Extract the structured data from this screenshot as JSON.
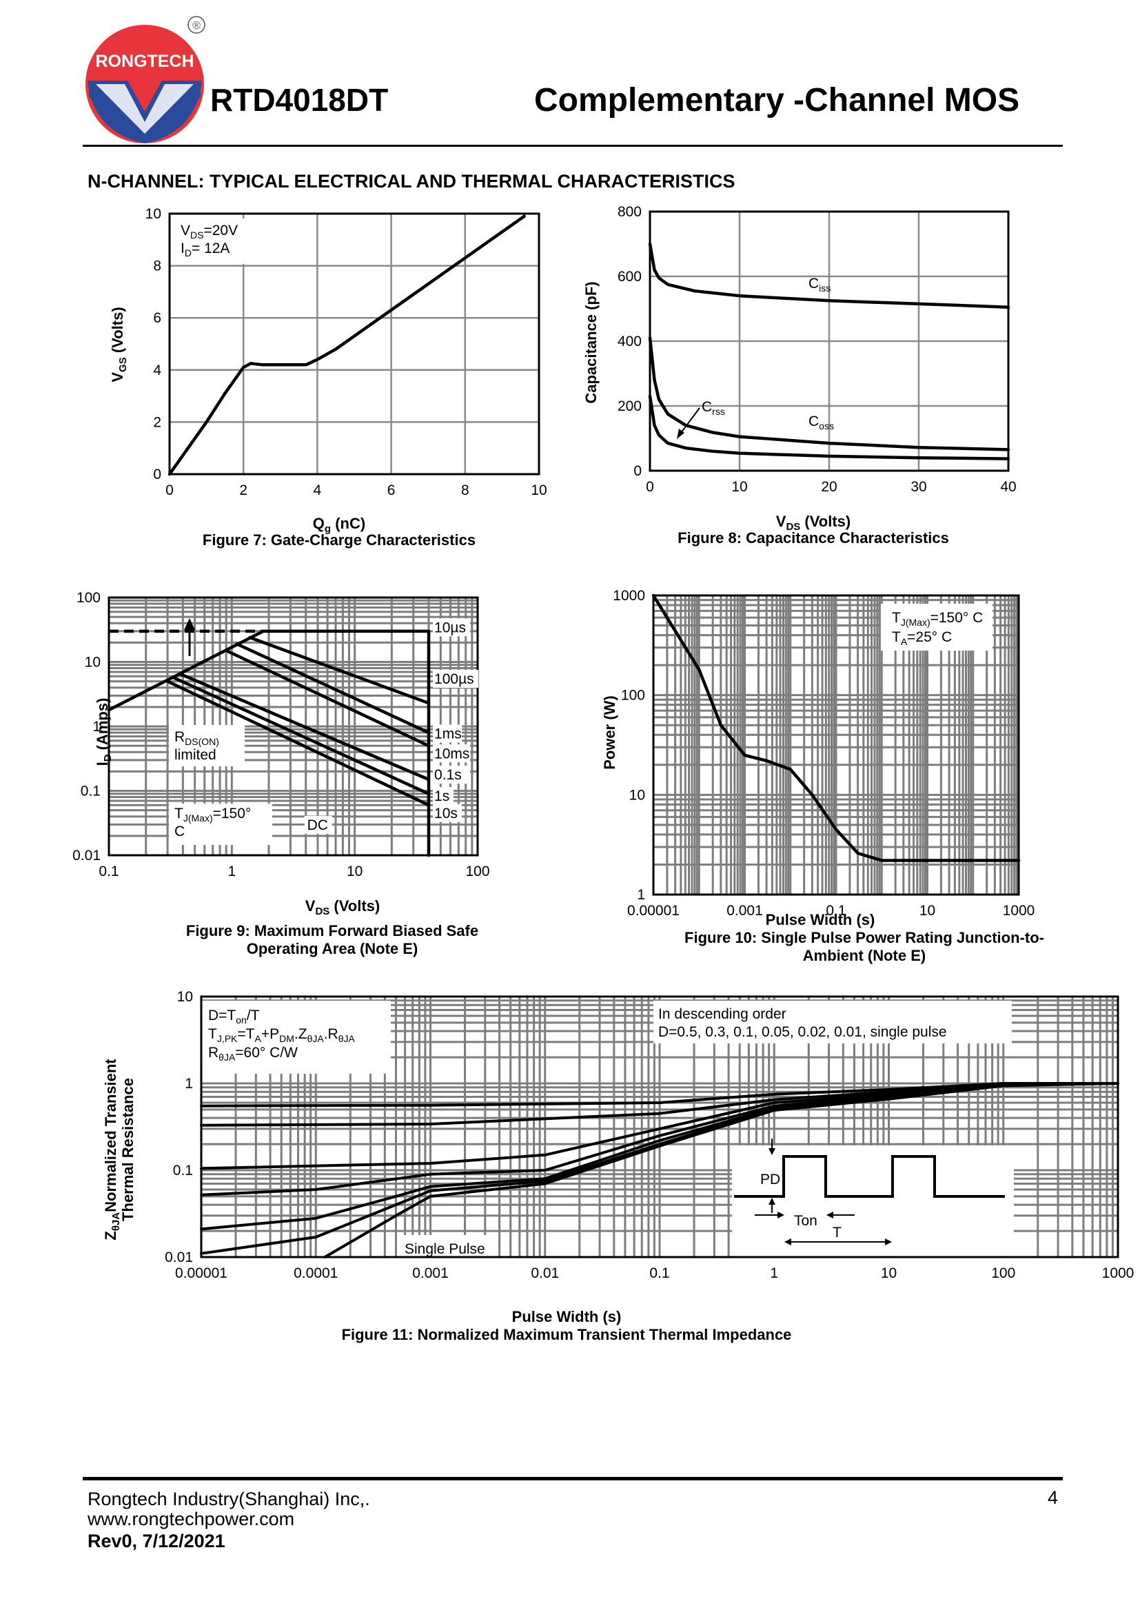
{
  "header": {
    "brand": "RONGTECH",
    "registered": "®",
    "part_number": "RTD4018DT",
    "title": "Complementary -Channel MOS"
  },
  "section_title": "N-CHANNEL: TYPICAL ELECTRICAL AND THERMAL CHARACTERISTICS",
  "footer": {
    "company": "Rongtech Industry(Shanghai) Inc,.",
    "website": "www.rongtechpower.com",
    "revision": "Rev0, 7/12/2021",
    "page": "4"
  },
  "colors": {
    "brand_red": "#e8343b",
    "brand_blue": "#2a4b9b",
    "ink": "#000000",
    "grid": "#888888"
  },
  "chart_data": [
    {
      "id": "fig7",
      "type": "line",
      "title": "Figure 7: Gate-Charge Characteristics",
      "xlabel": "Qg (nC)",
      "ylabel": "VGS (Volts)",
      "xlim": [
        0,
        10
      ],
      "ylim": [
        0,
        10
      ],
      "xticks": [
        "0",
        "2",
        "4",
        "6",
        "8",
        "10"
      ],
      "yticks": [
        "0",
        "2",
        "4",
        "6",
        "8",
        "10"
      ],
      "annotation": [
        "VDS=20V",
        "ID= 12A"
      ],
      "series": [
        {
          "name": "VGS",
          "points": [
            [
              0,
              0
            ],
            [
              0.5,
              1
            ],
            [
              1,
              2
            ],
            [
              1.5,
              3.1
            ],
            [
              2,
              4.1
            ],
            [
              2.2,
              4.25
            ],
            [
              2.5,
              4.2
            ],
            [
              3,
              4.2
            ],
            [
              3.7,
              4.2
            ],
            [
              4,
              4.4
            ],
            [
              4.5,
              4.8
            ],
            [
              5,
              5.3
            ],
            [
              6,
              6.3
            ],
            [
              7,
              7.3
            ],
            [
              8,
              8.3
            ],
            [
              9,
              9.3
            ],
            [
              9.6,
              9.9
            ]
          ]
        }
      ]
    },
    {
      "id": "fig8",
      "type": "line",
      "title": "Figure 8: Capacitance Characteristics",
      "xlabel": "VDS (Volts)",
      "ylabel": "Capacitance (pF)",
      "xlim": [
        0,
        40
      ],
      "ylim": [
        0,
        800
      ],
      "xticks": [
        "0",
        "10",
        "20",
        "30",
        "40"
      ],
      "yticks": [
        "0",
        "200",
        "400",
        "600",
        "800"
      ],
      "series": [
        {
          "name": "Ciss",
          "points": [
            [
              0,
              700
            ],
            [
              0.5,
              620
            ],
            [
              1,
              595
            ],
            [
              2,
              575
            ],
            [
              5,
              555
            ],
            [
              10,
              540
            ],
            [
              20,
              525
            ],
            [
              30,
              515
            ],
            [
              40,
              505
            ]
          ]
        },
        {
          "name": "Coss",
          "points": [
            [
              0,
              410
            ],
            [
              0.5,
              280
            ],
            [
              1,
              220
            ],
            [
              2,
              175
            ],
            [
              4,
              140
            ],
            [
              7,
              118
            ],
            [
              10,
              105
            ],
            [
              20,
              85
            ],
            [
              30,
              72
            ],
            [
              40,
              65
            ]
          ]
        },
        {
          "name": "Crss",
          "points": [
            [
              0,
              230
            ],
            [
              0.5,
              140
            ],
            [
              1,
              110
            ],
            [
              2,
              85
            ],
            [
              4,
              70
            ],
            [
              7,
              60
            ],
            [
              10,
              54
            ],
            [
              20,
              45
            ],
            [
              30,
              40
            ],
            [
              40,
              37
            ]
          ]
        }
      ]
    },
    {
      "id": "fig9",
      "type": "line",
      "title": "Figure 9: Maximum Forward Biased Safe Operating Area (Note E)",
      "xlabel": "VDS (Volts)",
      "ylabel": "ID (Amps)",
      "xlim": [
        0.1,
        100
      ],
      "ylim": [
        0.01,
        100
      ],
      "scale": "log-log",
      "xticks": [
        "0.1",
        "1",
        "10",
        "100"
      ],
      "yticks": [
        "0.01",
        "0.1",
        "1",
        "10",
        "100"
      ],
      "annotations": [
        "RDS(ON) limited",
        "TJ(Max)=150° C",
        "DC"
      ],
      "series": [
        {
          "name": "10µs",
          "points": [
            [
              0.1,
              1.8
            ],
            [
              1.8,
              30
            ],
            [
              40,
              30
            ]
          ]
        },
        {
          "name": "100µs",
          "points": [
            [
              1.4,
              24
            ],
            [
              40,
              2.3
            ]
          ]
        },
        {
          "name": "1ms",
          "points": [
            [
              1.1,
              19
            ],
            [
              40,
              0.8
            ]
          ]
        },
        {
          "name": "10ms",
          "points": [
            [
              0.9,
              15
            ],
            [
              40,
              0.5
            ]
          ]
        },
        {
          "name": "0.1s",
          "points": [
            [
              0.38,
              6.5
            ],
            [
              40,
              0.15
            ]
          ]
        },
        {
          "name": "1s",
          "points": [
            [
              0.33,
              5.8
            ],
            [
              40,
              0.09
            ]
          ]
        },
        {
          "name": "10s",
          "points": [
            [
              0.3,
              5
            ],
            [
              40,
              0.06
            ]
          ]
        },
        {
          "name": "DC",
          "points": [
            [
              40,
              30
            ],
            [
              40,
              0.01
            ]
          ]
        },
        {
          "name": "limit",
          "style": "dashed",
          "points": [
            [
              0.1,
              30
            ],
            [
              1.8,
              30
            ]
          ]
        }
      ]
    },
    {
      "id": "fig10",
      "type": "line",
      "title": "Figure 10: Single Pulse Power Rating Junction-to-Ambient (Note E)",
      "xlabel": "Pulse Width (s)",
      "ylabel": "Power (W)",
      "xlim": [
        1e-05,
        1000
      ],
      "ylim": [
        1,
        1000
      ],
      "scale": "log-log",
      "xticks": [
        "0.00001",
        "0.001",
        "0.1",
        "10",
        "1000"
      ],
      "yticks": [
        "1",
        "10",
        "100",
        "1000"
      ],
      "annotation": [
        "TJ(Max)=150° C",
        "TA=25° C"
      ],
      "series": [
        {
          "name": "Power",
          "points": [
            [
              1e-05,
              1000
            ],
            [
              0.0001,
              180
            ],
            [
              0.0003,
              50
            ],
            [
              0.001,
              25
            ],
            [
              0.003,
              22
            ],
            [
              0.01,
              18
            ],
            [
              0.03,
              10
            ],
            [
              0.1,
              4.5
            ],
            [
              0.3,
              2.6
            ],
            [
              1,
              2.2
            ],
            [
              10,
              2.2
            ],
            [
              1000,
              2.2
            ]
          ]
        }
      ]
    },
    {
      "id": "fig11",
      "type": "line",
      "title": "Figure 11: Normalized Maximum Transient Thermal Impedance",
      "xlabel": "Pulse Width (s)",
      "ylabel": "ZθJA Normalized Transient Thermal Resistance",
      "xlim": [
        1e-05,
        1000
      ],
      "ylim": [
        0.01,
        10
      ],
      "scale": "log-log",
      "xticks": [
        "0.00001",
        "0.0001",
        "0.001",
        "0.01",
        "0.1",
        "1",
        "10",
        "100",
        "1000"
      ],
      "yticks": [
        "0.01",
        "0.1",
        "1",
        "10"
      ],
      "annotation_left": [
        "D=Ton/T",
        "TJ,PK=TA+PDM.ZθJA.RθJA",
        "RθJA=60° C/W"
      ],
      "annotation_right": [
        "In descending order",
        "D=0.5, 0.3, 0.1, 0.05, 0.02, 0.01, single pulse"
      ],
      "single_pulse_label": "Single Pulse",
      "inset_labels": {
        "pd": "PD",
        "ton": "Ton",
        "t": "T"
      },
      "series": [
        {
          "name": "D=0.5",
          "points": [
            [
              1e-05,
              0.55
            ],
            [
              0.001,
              0.56
            ],
            [
              0.1,
              0.6
            ],
            [
              1,
              0.75
            ],
            [
              10,
              0.85
            ],
            [
              100,
              1
            ],
            [
              1000,
              1
            ]
          ]
        },
        {
          "name": "D=0.3",
          "points": [
            [
              1e-05,
              0.33
            ],
            [
              0.001,
              0.34
            ],
            [
              0.1,
              0.45
            ],
            [
              1,
              0.65
            ],
            [
              10,
              0.8
            ],
            [
              100,
              1
            ],
            [
              1000,
              1
            ]
          ]
        },
        {
          "name": "D=0.1",
          "points": [
            [
              1e-05,
              0.105
            ],
            [
              0.001,
              0.12
            ],
            [
              0.01,
              0.15
            ],
            [
              0.1,
              0.3
            ],
            [
              1,
              0.6
            ],
            [
              10,
              0.75
            ],
            [
              100,
              0.98
            ],
            [
              1000,
              1
            ]
          ]
        },
        {
          "name": "D=0.05",
          "points": [
            [
              1e-05,
              0.052
            ],
            [
              0.0001,
              0.06
            ],
            [
              0.001,
              0.09
            ],
            [
              0.01,
              0.1
            ],
            [
              0.1,
              0.25
            ],
            [
              1,
              0.55
            ],
            [
              10,
              0.72
            ],
            [
              100,
              0.97
            ],
            [
              1000,
              1
            ]
          ]
        },
        {
          "name": "D=0.02",
          "points": [
            [
              1e-05,
              0.021
            ],
            [
              0.0001,
              0.028
            ],
            [
              0.0005,
              0.05
            ],
            [
              0.001,
              0.065
            ],
            [
              0.01,
              0.08
            ],
            [
              0.1,
              0.22
            ],
            [
              1,
              0.52
            ],
            [
              10,
              0.7
            ],
            [
              100,
              0.96
            ],
            [
              1000,
              1
            ]
          ]
        },
        {
          "name": "D=0.01",
          "points": [
            [
              1e-05,
              0.011
            ],
            [
              0.0001,
              0.017
            ],
            [
              0.0005,
              0.04
            ],
            [
              0.001,
              0.058
            ],
            [
              0.01,
              0.075
            ],
            [
              0.1,
              0.2
            ],
            [
              1,
              0.5
            ],
            [
              10,
              0.68
            ],
            [
              100,
              0.95
            ],
            [
              1000,
              1
            ]
          ]
        },
        {
          "name": "single pulse",
          "points": [
            [
              0.00012,
              0.01
            ],
            [
              0.0005,
              0.03
            ],
            [
              0.001,
              0.05
            ],
            [
              0.01,
              0.07
            ],
            [
              0.1,
              0.19
            ],
            [
              1,
              0.49
            ],
            [
              10,
              0.66
            ],
            [
              100,
              0.94
            ],
            [
              1000,
              1
            ]
          ]
        }
      ]
    }
  ]
}
